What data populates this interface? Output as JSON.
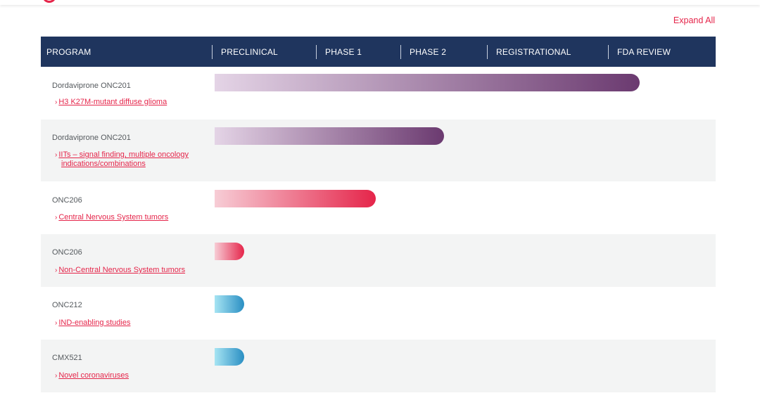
{
  "page": {
    "expand_all": "Expand All"
  },
  "header": {
    "columns": [
      "PROGRAM",
      "PRECLINICAL",
      "PHASE 1",
      "PHASE 2",
      "REGISTRATIONAL",
      "FDA REVIEW"
    ]
  },
  "stages": [
    "PRECLINICAL",
    "PHASE 1",
    "PHASE 2",
    "REGISTRATIONAL",
    "FDA REVIEW"
  ],
  "rows": [
    {
      "program": "Dordaviprone ONC201",
      "indication_line1": "H3 K27M-mutant diffuse glioma",
      "indication_line2": "",
      "progress_fraction": 0.87,
      "colors": [
        "#e4d4e6",
        "#6b3a70"
      ]
    },
    {
      "program": "Dordaviprone ONC201",
      "indication_line1": "IITs – signal finding, multiple oncology",
      "indication_line2": "indications/combinations",
      "progress_fraction": 0.47,
      "colors": [
        "#e4d4e6",
        "#6b3a70"
      ]
    },
    {
      "program": "ONC206",
      "indication_line1": "Central Nervous System tumors",
      "indication_line2": "",
      "progress_fraction": 0.33,
      "colors": [
        "#f7cdd6",
        "#e5254a"
      ]
    },
    {
      "program": "ONC206",
      "indication_line1": "Non-Central Nervous System tumors",
      "indication_line2": "",
      "progress_fraction": 0.06,
      "colors": [
        "#f7cdd6",
        "#e5254a"
      ]
    },
    {
      "program": "ONC212",
      "indication_line1": "IND-enabling studies",
      "indication_line2": "",
      "progress_fraction": 0.06,
      "colors": [
        "#a6e4f3",
        "#2a8fc3"
      ]
    },
    {
      "program": "CMX521",
      "indication_line1": "Novel coronaviruses",
      "indication_line2": "",
      "progress_fraction": 0.06,
      "colors": [
        "#a6e4f3",
        "#2a8fc3"
      ]
    }
  ]
}
